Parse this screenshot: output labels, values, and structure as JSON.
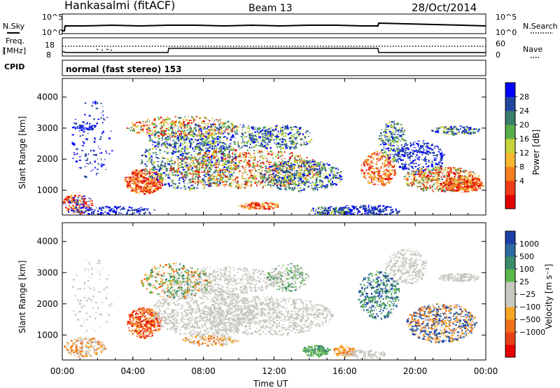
{
  "header": {
    "station": "Hankasalmi (fitACF)",
    "beam": "Beam 13",
    "date": "28/Oct/2014"
  },
  "noise_panel": {
    "left_label": "N.Sky",
    "right_label": "N.Search",
    "left_ticks": [
      "10^5",
      "10^0"
    ],
    "right_ticks": [
      "10^5",
      "10^0"
    ]
  },
  "freq_panel": {
    "left_label_line1": "Freq.",
    "left_label_line2": "[MHz]",
    "left_ticks": [
      "18",
      "8"
    ],
    "right_ticks": [
      "60",
      "0"
    ],
    "right_label": "Nave",
    "cpid_label": "CPID",
    "cpid_text": "normal (fast stereo) 153"
  },
  "chart_data": [
    {
      "type": "heatmap",
      "title": "Power",
      "ylabel": "Slant Range [km]",
      "yticks": [
        "1000",
        "2000",
        "3000",
        "4000"
      ],
      "ylim": [
        200,
        4600
      ],
      "colorbar_label": "Power [dB]",
      "colorbar_ticks": [
        "4",
        "8",
        "12",
        "16",
        "20",
        "24",
        "28"
      ],
      "colorbar_colors": [
        "#0000ff",
        "#23479f",
        "#3a7f6c",
        "#5aae4c",
        "#c6d43a",
        "#f5b82f",
        "#f57e1e",
        "#f03a17",
        "#e10000"
      ]
    },
    {
      "type": "heatmap",
      "title": "Velocity",
      "ylabel": "Slant Range [km]",
      "yticks": [
        "1000",
        "2000",
        "3000",
        "4000"
      ],
      "ylim": [
        200,
        4600
      ],
      "colorbar_label": "Velocity [m s⁻¹]",
      "colorbar_ticks": [
        "1000",
        "500",
        "100",
        "25",
        "−25",
        "−100",
        "−500",
        "−1000"
      ],
      "colorbar_colors": [
        "#1e3fa8",
        "#2f6aa0",
        "#3a8a6c",
        "#5db84a",
        "#c8c8c0",
        "#c8c8c0",
        "#f5a623",
        "#f0701c",
        "#e84016",
        "#e60000"
      ]
    }
  ],
  "xaxis": {
    "ticks": [
      "00:00",
      "04:00",
      "08:00",
      "12:00",
      "16:00",
      "20:00",
      "00:00"
    ],
    "label": "Time UT"
  },
  "colors": {
    "ground_scatter": "#c8c8c0",
    "axis": "#000000"
  }
}
